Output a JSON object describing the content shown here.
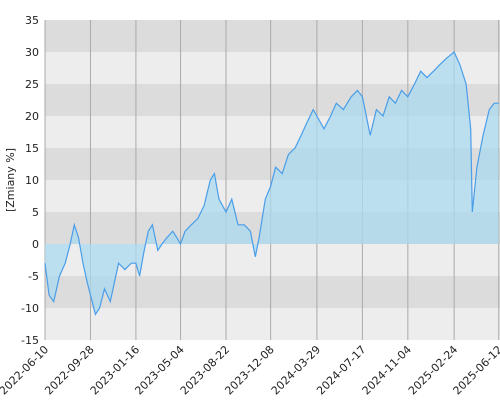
{
  "chart_data": {
    "type": "area",
    "y_label": "[Zmiany %]",
    "x": [
      "2022-06-10",
      "2022-06-20",
      "2022-07-01",
      "2022-07-15",
      "2022-07-29",
      "2022-08-10",
      "2022-08-20",
      "2022-08-30",
      "2022-09-10",
      "2022-09-20",
      "2022-09-28",
      "2022-10-10",
      "2022-10-20",
      "2022-11-01",
      "2022-11-15",
      "2022-11-25",
      "2022-12-05",
      "2022-12-20",
      "2023-01-05",
      "2023-01-16",
      "2023-01-25",
      "2023-02-05",
      "2023-02-15",
      "2023-02-25",
      "2023-03-10",
      "2023-03-20",
      "2023-04-01",
      "2023-04-15",
      "2023-04-25",
      "2023-05-04",
      "2023-05-15",
      "2023-05-30",
      "2023-06-15",
      "2023-06-30",
      "2023-07-15",
      "2023-07-25",
      "2023-08-05",
      "2023-08-22",
      "2023-09-05",
      "2023-09-20",
      "2023-10-05",
      "2023-10-20",
      "2023-11-01",
      "2023-11-10",
      "2023-11-25",
      "2023-12-08",
      "2023-12-20",
      "2024-01-05",
      "2024-01-20",
      "2024-02-05",
      "2024-02-20",
      "2024-03-05",
      "2024-03-20",
      "2024-03-29",
      "2024-04-15",
      "2024-05-01",
      "2024-05-15",
      "2024-06-01",
      "2024-06-20",
      "2024-07-05",
      "2024-07-17",
      "2024-08-05",
      "2024-08-20",
      "2024-09-05",
      "2024-09-20",
      "2024-10-05",
      "2024-10-20",
      "2024-11-04",
      "2024-11-20",
      "2024-12-05",
      "2024-12-20",
      "2025-01-05",
      "2025-01-20",
      "2025-02-05",
      "2025-02-24",
      "2025-03-10",
      "2025-03-25",
      "2025-04-05",
      "2025-04-09",
      "2025-04-20",
      "2025-05-05",
      "2025-05-20",
      "2025-06-01",
      "2025-06-12"
    ],
    "series": [
      {
        "color": "#4a9de8",
        "fill": "#a9d9ef",
        "values": [
          -3,
          -8,
          -9,
          -5,
          -3,
          0,
          3,
          1,
          -3,
          -6,
          -8,
          -11,
          -10,
          -7,
          -9,
          -6,
          -3,
          -4,
          -3,
          -3,
          -5,
          -1,
          2,
          3,
          -1,
          0,
          1,
          2,
          1,
          0,
          2,
          3,
          4,
          6,
          10,
          11,
          7,
          5,
          7,
          3,
          3,
          2,
          -2,
          1,
          7,
          9,
          12,
          11,
          14,
          15,
          17,
          19,
          21,
          20,
          18,
          20,
          22,
          21,
          23,
          24,
          23,
          17,
          21,
          20,
          23,
          22,
          24,
          23,
          25,
          27,
          26,
          27,
          28,
          29,
          30,
          28,
          25,
          18,
          5,
          12,
          17,
          21,
          22,
          22
        ]
      }
    ],
    "xlim": [
      "2022-06-10",
      "2025-06-15"
    ],
    "xticks": [
      "2022-06-10",
      "2022-09-28",
      "2023-01-16",
      "2023-05-04",
      "2023-08-22",
      "2023-12-08",
      "2024-03-29",
      "2024-07-17",
      "2024-11-04",
      "2025-02-24",
      "2025-06-12"
    ],
    "ylim": [
      -15,
      35
    ],
    "yticks": [
      -15,
      -10,
      -5,
      0,
      5,
      10,
      15,
      20,
      25,
      30,
      35
    ],
    "grid": true
  }
}
